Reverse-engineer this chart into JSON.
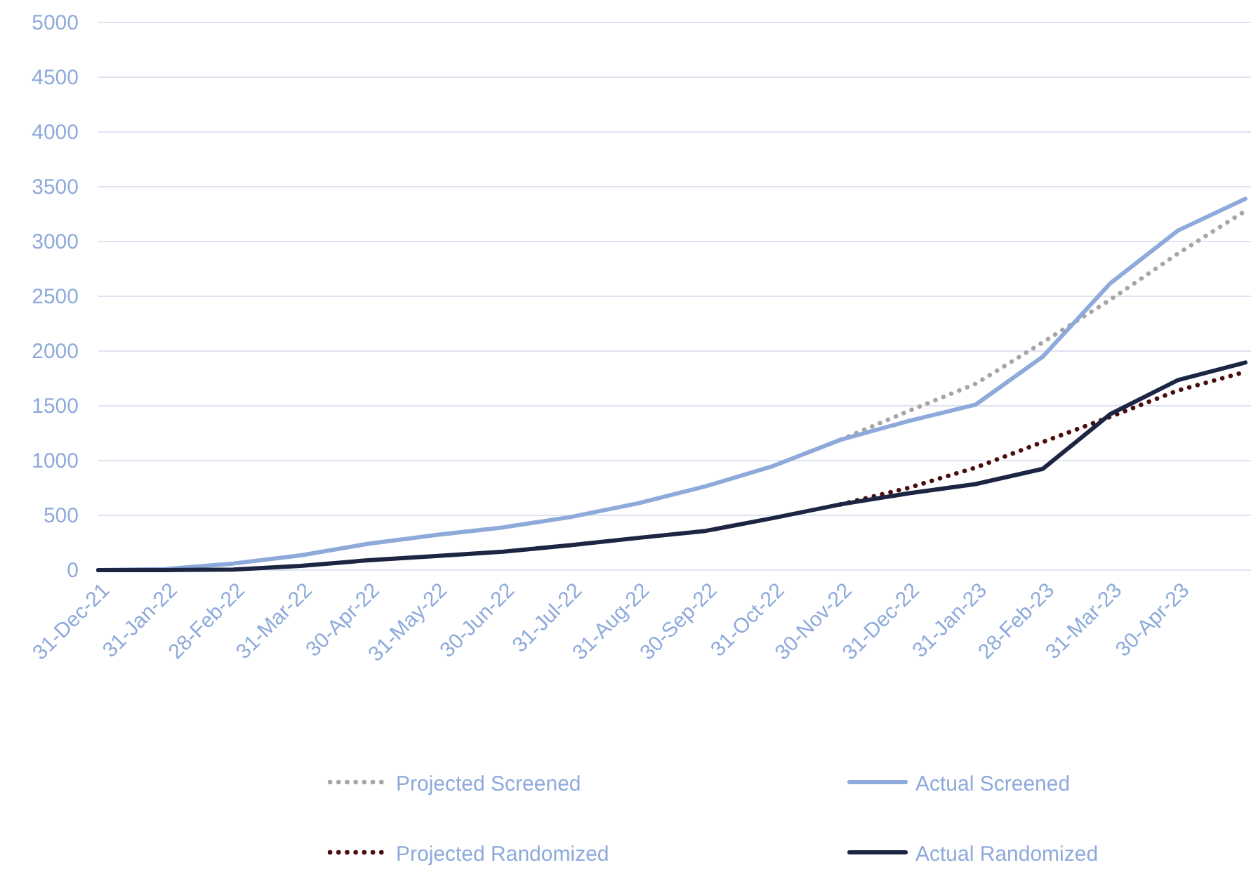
{
  "chart_data": {
    "type": "line",
    "categories": [
      "31-Dec-21",
      "31-Jan-22",
      "28-Feb-22",
      "31-Mar-22",
      "30-Apr-22",
      "31-May-22",
      "30-Jun-22",
      "31-Jul-22",
      "31-Aug-22",
      "30-Sep-22",
      "31-Oct-22",
      "30-Nov-22",
      "31-Dec-22",
      "31-Jan-23",
      "28-Feb-23",
      "31-Mar-23",
      "30-Apr-23",
      null
    ],
    "series": [
      {
        "name": "Projected Screened",
        "color": "#a6a6a6",
        "line_style": "dotted",
        "values": [
          null,
          null,
          null,
          null,
          null,
          null,
          null,
          null,
          null,
          null,
          null,
          1190,
          1450,
          1700,
          2080,
          2470,
          2890,
          3280
        ]
      },
      {
        "name": "Actual Screened",
        "color": "#8eaadb",
        "line_style": "solid",
        "values": [
          0,
          10,
          60,
          135,
          240,
          320,
          390,
          485,
          610,
          765,
          950,
          1190,
          1360,
          1510,
          1950,
          2620,
          3100,
          3390
        ]
      },
      {
        "name": "Projected Randomized",
        "color": "#4a0c0c",
        "line_style": "dotted",
        "values": [
          null,
          null,
          null,
          null,
          null,
          null,
          null,
          null,
          null,
          null,
          null,
          600,
          750,
          935,
          1170,
          1400,
          1640,
          1810
        ]
      },
      {
        "name": "Actual Randomized",
        "color": "#1c2541",
        "line_style": "solid",
        "values": [
          0,
          0,
          5,
          38,
          90,
          128,
          168,
          228,
          294,
          358,
          475,
          600,
          700,
          785,
          925,
          1425,
          1735,
          1895
        ]
      }
    ],
    "ylim": [
      0,
      5000
    ],
    "yticks": [
      0,
      500,
      1000,
      1500,
      2000,
      2500,
      3000,
      3500,
      4000,
      4500,
      5000
    ],
    "grid": "y",
    "legend": "bottom",
    "marker": "none"
  }
}
